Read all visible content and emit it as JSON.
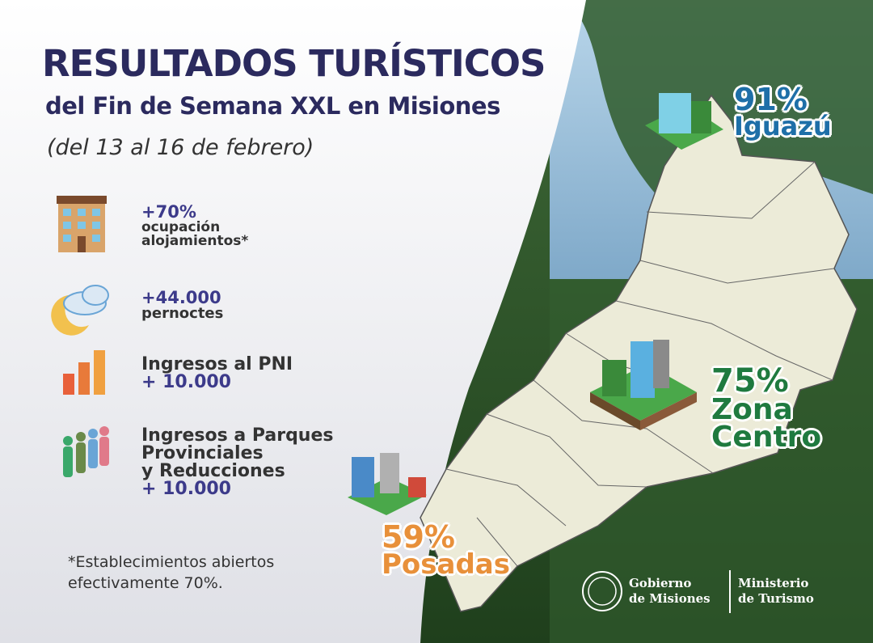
{
  "header": {
    "title": "RESULTADOS TURÍSTICOS",
    "subtitle": "del Fin de Semana XXL en Misiones",
    "dates": "(del 13 al 16 de febrero)"
  },
  "stats": [
    {
      "lines": [
        "+70%",
        "ocupación",
        "alojamientos*"
      ]
    },
    {
      "lines": [
        "+44.000",
        "pernoctes"
      ]
    },
    {
      "lines": [
        "Ingresos al PNI",
        "+ 10.000"
      ]
    },
    {
      "lines": [
        "Ingresos a Parques",
        "Provinciales",
        "y Reducciones",
        "+ 10.000"
      ]
    }
  ],
  "footnote": [
    "*Establecimientos abiertos",
    "efectivamente 70%."
  ],
  "regions": [
    {
      "percent": "91%",
      "name": [
        "Iguazú"
      ]
    },
    {
      "percent": "75%",
      "name": [
        "Zona",
        "Centro"
      ]
    },
    {
      "percent": "59%",
      "name": [
        "Posadas"
      ]
    }
  ],
  "logo": {
    "left": [
      "Gobierno",
      "de Misiones"
    ],
    "right": [
      "Ministerio",
      "de Turismo"
    ]
  }
}
